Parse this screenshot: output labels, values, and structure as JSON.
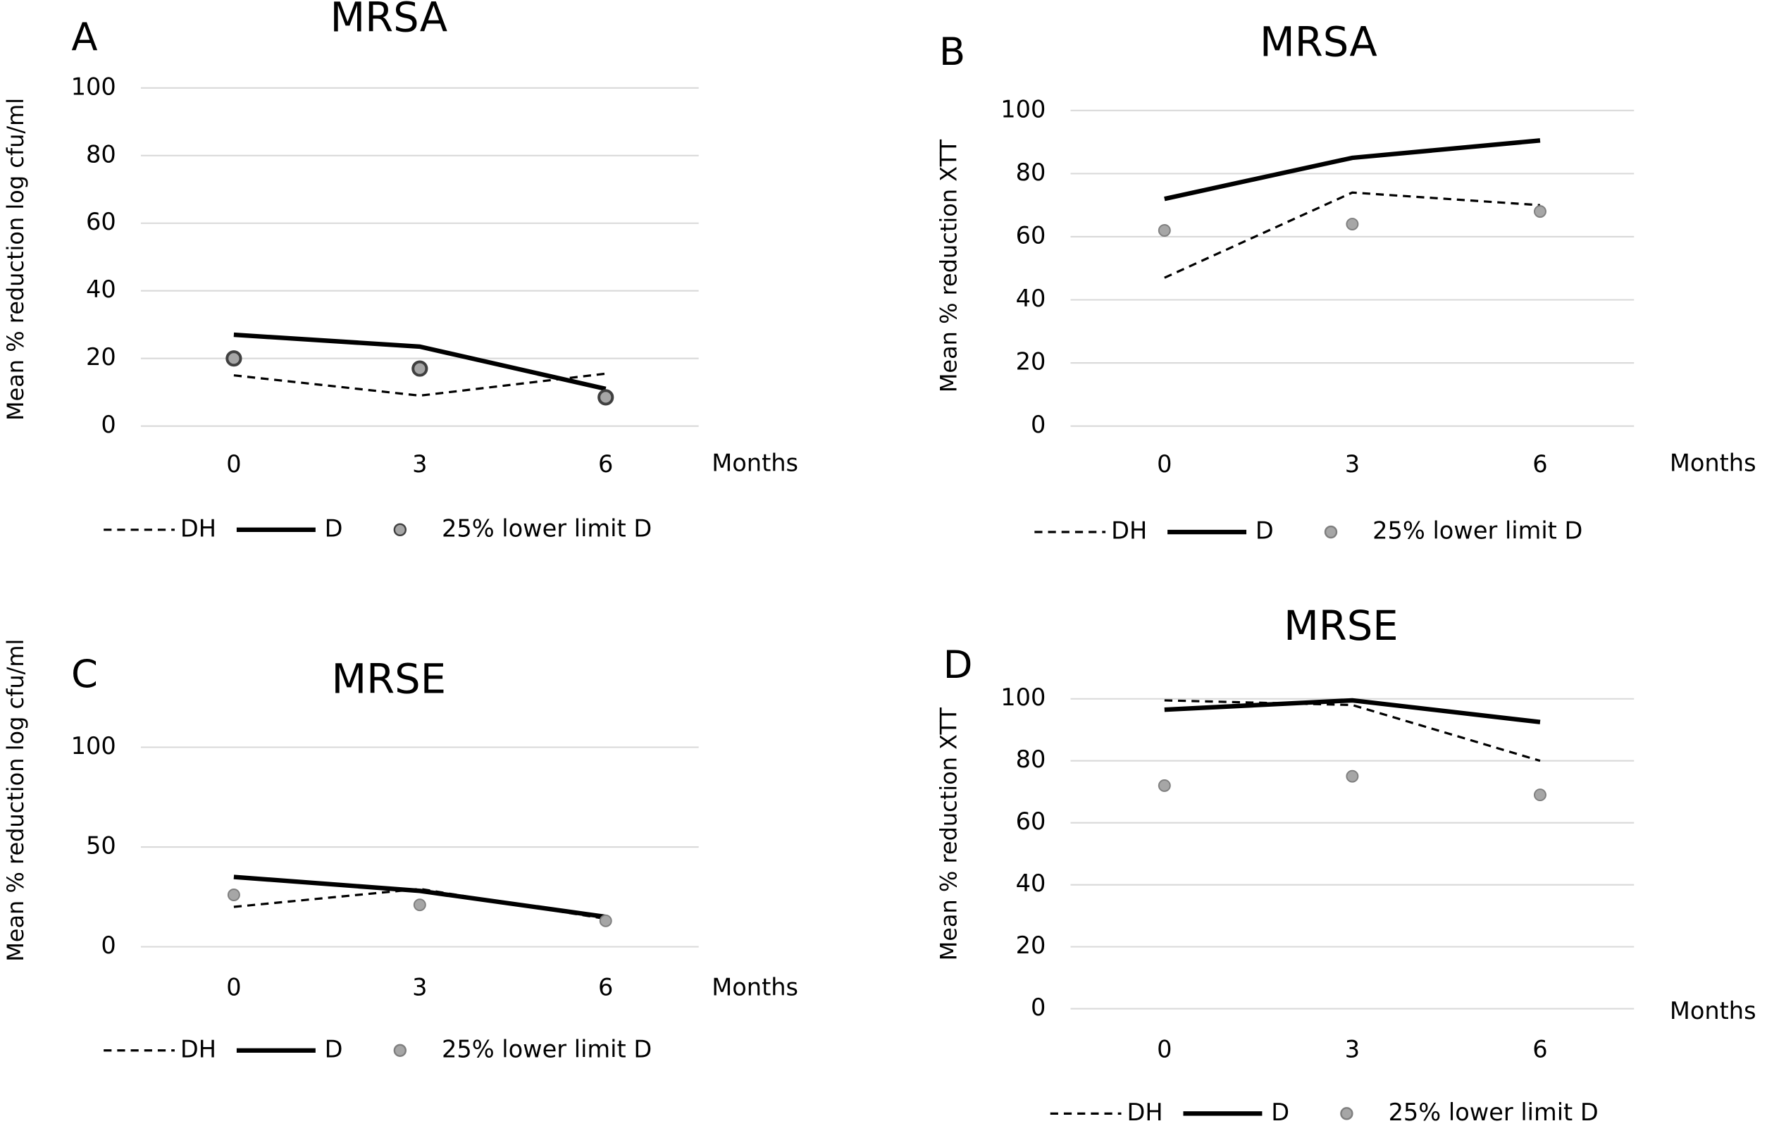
{
  "chart_data": [
    {
      "type": "line",
      "panel": "A",
      "title": "MRSA",
      "y_label": "Mean % reduction  log cfu/ml",
      "x_label": "Months",
      "categories": [
        "0",
        "3",
        "6"
      ],
      "ylim": [
        0,
        100
      ],
      "yticks": [
        0,
        20,
        40,
        60,
        80,
        100
      ],
      "grid": true,
      "series": [
        {
          "name": "DH",
          "color": "#000000",
          "style": "dashed",
          "values": [
            15,
            9,
            15.5
          ]
        },
        {
          "name": "D",
          "color": "#000000",
          "style": "solid",
          "values": [
            27,
            23.5,
            11
          ]
        },
        {
          "name": "25% lower limit D",
          "color": "#a6a6a6",
          "edgecolor": "#404040",
          "style": "marker",
          "values": [
            20,
            17,
            8.5
          ]
        }
      ]
    },
    {
      "type": "line",
      "panel": "B",
      "title": "MRSA",
      "y_label": "Mean % reduction  XTT",
      "x_label": "Months",
      "categories": [
        "0",
        "3",
        "6"
      ],
      "ylim": [
        0,
        100
      ],
      "yticks": [
        0,
        20,
        40,
        60,
        80,
        100
      ],
      "grid": true,
      "series": [
        {
          "name": "DH",
          "color": "#000000",
          "style": "dashed",
          "values": [
            47,
            74,
            70
          ]
        },
        {
          "name": "D",
          "color": "#000000",
          "style": "solid",
          "values": [
            72,
            85,
            90.5
          ]
        },
        {
          "name": "25% lower limit D",
          "color": "#a6a6a6",
          "edgecolor": "#7f7f7f",
          "style": "marker",
          "values": [
            62,
            64,
            68
          ]
        }
      ]
    },
    {
      "type": "line",
      "panel": "C",
      "title": "MRSE",
      "y_label": "Mean % reduction  log cfu/ml",
      "x_label": "Months",
      "categories": [
        "0",
        "3",
        "6"
      ],
      "ylim": [
        0,
        100
      ],
      "yticks": [
        0,
        50,
        100
      ],
      "grid": true,
      "series": [
        {
          "name": "DH",
          "color": "#000000",
          "style": "dashed",
          "values": [
            20,
            29,
            14
          ]
        },
        {
          "name": "D",
          "color": "#000000",
          "style": "solid",
          "values": [
            35,
            28,
            15
          ]
        },
        {
          "name": "25% lower limit D",
          "color": "#a6a6a6",
          "edgecolor": "#7f7f7f",
          "style": "marker",
          "values": [
            26,
            21,
            13
          ]
        }
      ]
    },
    {
      "type": "line",
      "panel": "D",
      "title": "MRSE",
      "y_label": "Mean % reduction  XTT",
      "x_label": "Months",
      "categories": [
        "0",
        "3",
        "6"
      ],
      "ylim": [
        0,
        100
      ],
      "yticks": [
        0,
        20,
        40,
        60,
        80,
        100
      ],
      "grid": true,
      "series": [
        {
          "name": "DH",
          "color": "#000000",
          "style": "dashed",
          "values": [
            99.5,
            98,
            80
          ]
        },
        {
          "name": "D",
          "color": "#000000",
          "style": "solid",
          "values": [
            96.5,
            99.5,
            92.5
          ]
        },
        {
          "name": "25% lower limit D",
          "color": "#a6a6a6",
          "edgecolor": "#7f7f7f",
          "style": "marker",
          "values": [
            72,
            75,
            69
          ]
        }
      ]
    }
  ]
}
